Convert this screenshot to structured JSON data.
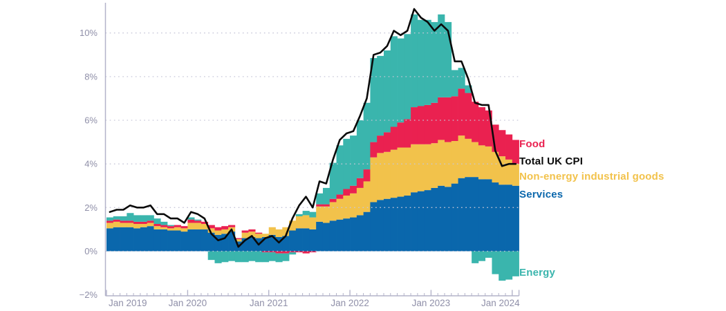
{
  "chart_data": {
    "type": "bar",
    "stacked": true,
    "has_overlay_line": true,
    "title": "",
    "x_start": "Jan 2019",
    "x_end": "Jan 2024",
    "x_frequency": "monthly",
    "x_tick_labels": [
      "Jan 2019",
      "Jan 2020",
      "Jan 2021",
      "Jan 2022",
      "Jan 2023",
      "Jan 2024"
    ],
    "y_tick_labels": [
      "10%",
      "8%",
      "6%",
      "4%",
      "2%",
      "0%",
      "−2%"
    ],
    "y_tick_values": [
      10,
      8,
      6,
      4,
      2,
      0,
      -2
    ],
    "ylim": [
      -2.1,
      11.5
    ],
    "y_unit": "% (percentage-point contributions to annual UK CPI inflation)",
    "grid": "dotted horizontal gridlines at 0,2,4,6,8,10",
    "legend_position": "right",
    "axis_color": "#b3b3c9",
    "grid_color": "#c6c6d8",
    "tick_label_color": "#8f8fa8",
    "series": [
      {
        "name": "Services",
        "color": "#0a67ac",
        "values": [
          1.05,
          1.1,
          1.1,
          1.1,
          1.05,
          1.1,
          1.15,
          1.0,
          1.0,
          0.95,
          0.95,
          0.9,
          1.0,
          1.0,
          1.0,
          0.85,
          0.75,
          0.8,
          0.9,
          0.45,
          0.6,
          0.65,
          0.6,
          0.65,
          0.75,
          0.65,
          0.7,
          0.95,
          1.05,
          1.05,
          1.0,
          1.35,
          1.3,
          1.4,
          1.45,
          1.5,
          1.55,
          1.65,
          1.8,
          2.25,
          2.35,
          2.4,
          2.45,
          2.5,
          2.55,
          2.7,
          2.75,
          2.8,
          2.9,
          3.0,
          2.95,
          3.1,
          3.35,
          3.4,
          3.4,
          3.3,
          3.3,
          3.15,
          3.05,
          3.05,
          3.0
        ]
      },
      {
        "name": "Non-energy industrial goods",
        "color": "#f2c24b",
        "values": [
          0.25,
          0.25,
          0.2,
          0.2,
          0.2,
          0.15,
          0.15,
          0.15,
          0.1,
          0.1,
          0.15,
          0.15,
          0.3,
          0.3,
          0.25,
          0.2,
          0.2,
          0.2,
          0.2,
          0.1,
          0.25,
          0.25,
          0.2,
          0.15,
          0.35,
          0.35,
          0.4,
          0.45,
          0.55,
          0.6,
          0.55,
          0.7,
          0.75,
          0.85,
          0.95,
          1.05,
          1.1,
          1.25,
          1.4,
          2.05,
          2.15,
          2.15,
          2.2,
          2.25,
          2.2,
          2.2,
          2.15,
          2.1,
          2.05,
          2.1,
          2.05,
          1.95,
          1.95,
          1.75,
          1.6,
          1.55,
          1.5,
          1.4,
          1.3,
          1.15,
          1.0
        ]
      },
      {
        "name": "Food",
        "color": "#ea2150",
        "values": [
          0.1,
          0.1,
          0.1,
          0.1,
          0.1,
          0.1,
          0.1,
          0.1,
          0.1,
          0.1,
          0.1,
          0.1,
          0.15,
          0.1,
          0.1,
          0.15,
          0.15,
          0.15,
          0.1,
          0.05,
          0.1,
          0.1,
          0.05,
          -0.05,
          -0.05,
          -0.1,
          -0.1,
          -0.05,
          -0.05,
          -0.1,
          -0.05,
          0.1,
          0.1,
          0.15,
          0.2,
          0.3,
          0.35,
          0.45,
          0.55,
          0.7,
          0.8,
          0.9,
          1.05,
          1.15,
          1.3,
          1.7,
          1.75,
          1.8,
          1.85,
          1.95,
          2.05,
          2.05,
          2.15,
          2.1,
          1.85,
          1.75,
          1.65,
          1.25,
          1.2,
          1.15,
          1.1
        ]
      },
      {
        "name": "Energy",
        "color": "#3ab5ad",
        "values": [
          0.15,
          0.15,
          0.2,
          0.35,
          0.3,
          0.3,
          0.25,
          0.25,
          0.15,
          0.05,
          0.0,
          0.0,
          0.1,
          0.05,
          0.0,
          -0.4,
          -0.55,
          -0.5,
          -0.45,
          -0.5,
          -0.5,
          -0.45,
          -0.5,
          -0.45,
          -0.4,
          -0.4,
          -0.35,
          -0.1,
          0.1,
          0.2,
          0.25,
          0.5,
          0.75,
          1.65,
          2.25,
          2.3,
          2.3,
          2.65,
          3.05,
          3.85,
          3.65,
          3.75,
          4.15,
          3.85,
          3.9,
          4.25,
          3.95,
          3.9,
          3.7,
          3.8,
          3.45,
          1.2,
          0.95,
          0.35,
          -0.55,
          -0.45,
          -0.3,
          -1.05,
          -1.35,
          -1.3,
          -1.15
        ]
      }
    ],
    "line": {
      "name": "Total UK CPI",
      "color": "#0a0a0a",
      "values": [
        1.8,
        1.9,
        1.9,
        2.1,
        2.0,
        2.0,
        2.1,
        1.7,
        1.7,
        1.5,
        1.5,
        1.3,
        1.8,
        1.7,
        1.5,
        0.8,
        0.5,
        0.6,
        1.0,
        0.2,
        0.5,
        0.7,
        0.3,
        0.6,
        0.7,
        0.4,
        0.7,
        1.5,
        2.1,
        2.5,
        2.0,
        3.2,
        3.1,
        4.2,
        5.1,
        5.4,
        5.5,
        6.2,
        7.0,
        9.0,
        9.1,
        9.4,
        10.1,
        9.9,
        10.1,
        11.1,
        10.7,
        10.5,
        10.1,
        10.4,
        10.1,
        8.7,
        8.7,
        7.9,
        6.8,
        6.7,
        6.7,
        4.6,
        3.9,
        4.0,
        4.0
      ]
    },
    "legend": [
      {
        "label": "Food",
        "color": "#ea2150"
      },
      {
        "label": "Total UK CPI",
        "color": "#0a0a0a"
      },
      {
        "label": "Non-energy industrial goods",
        "color": "#f2c24b"
      },
      {
        "label": "Services",
        "color": "#0a67ac"
      },
      {
        "label": "Energy",
        "color": "#3ab5ad"
      }
    ]
  }
}
